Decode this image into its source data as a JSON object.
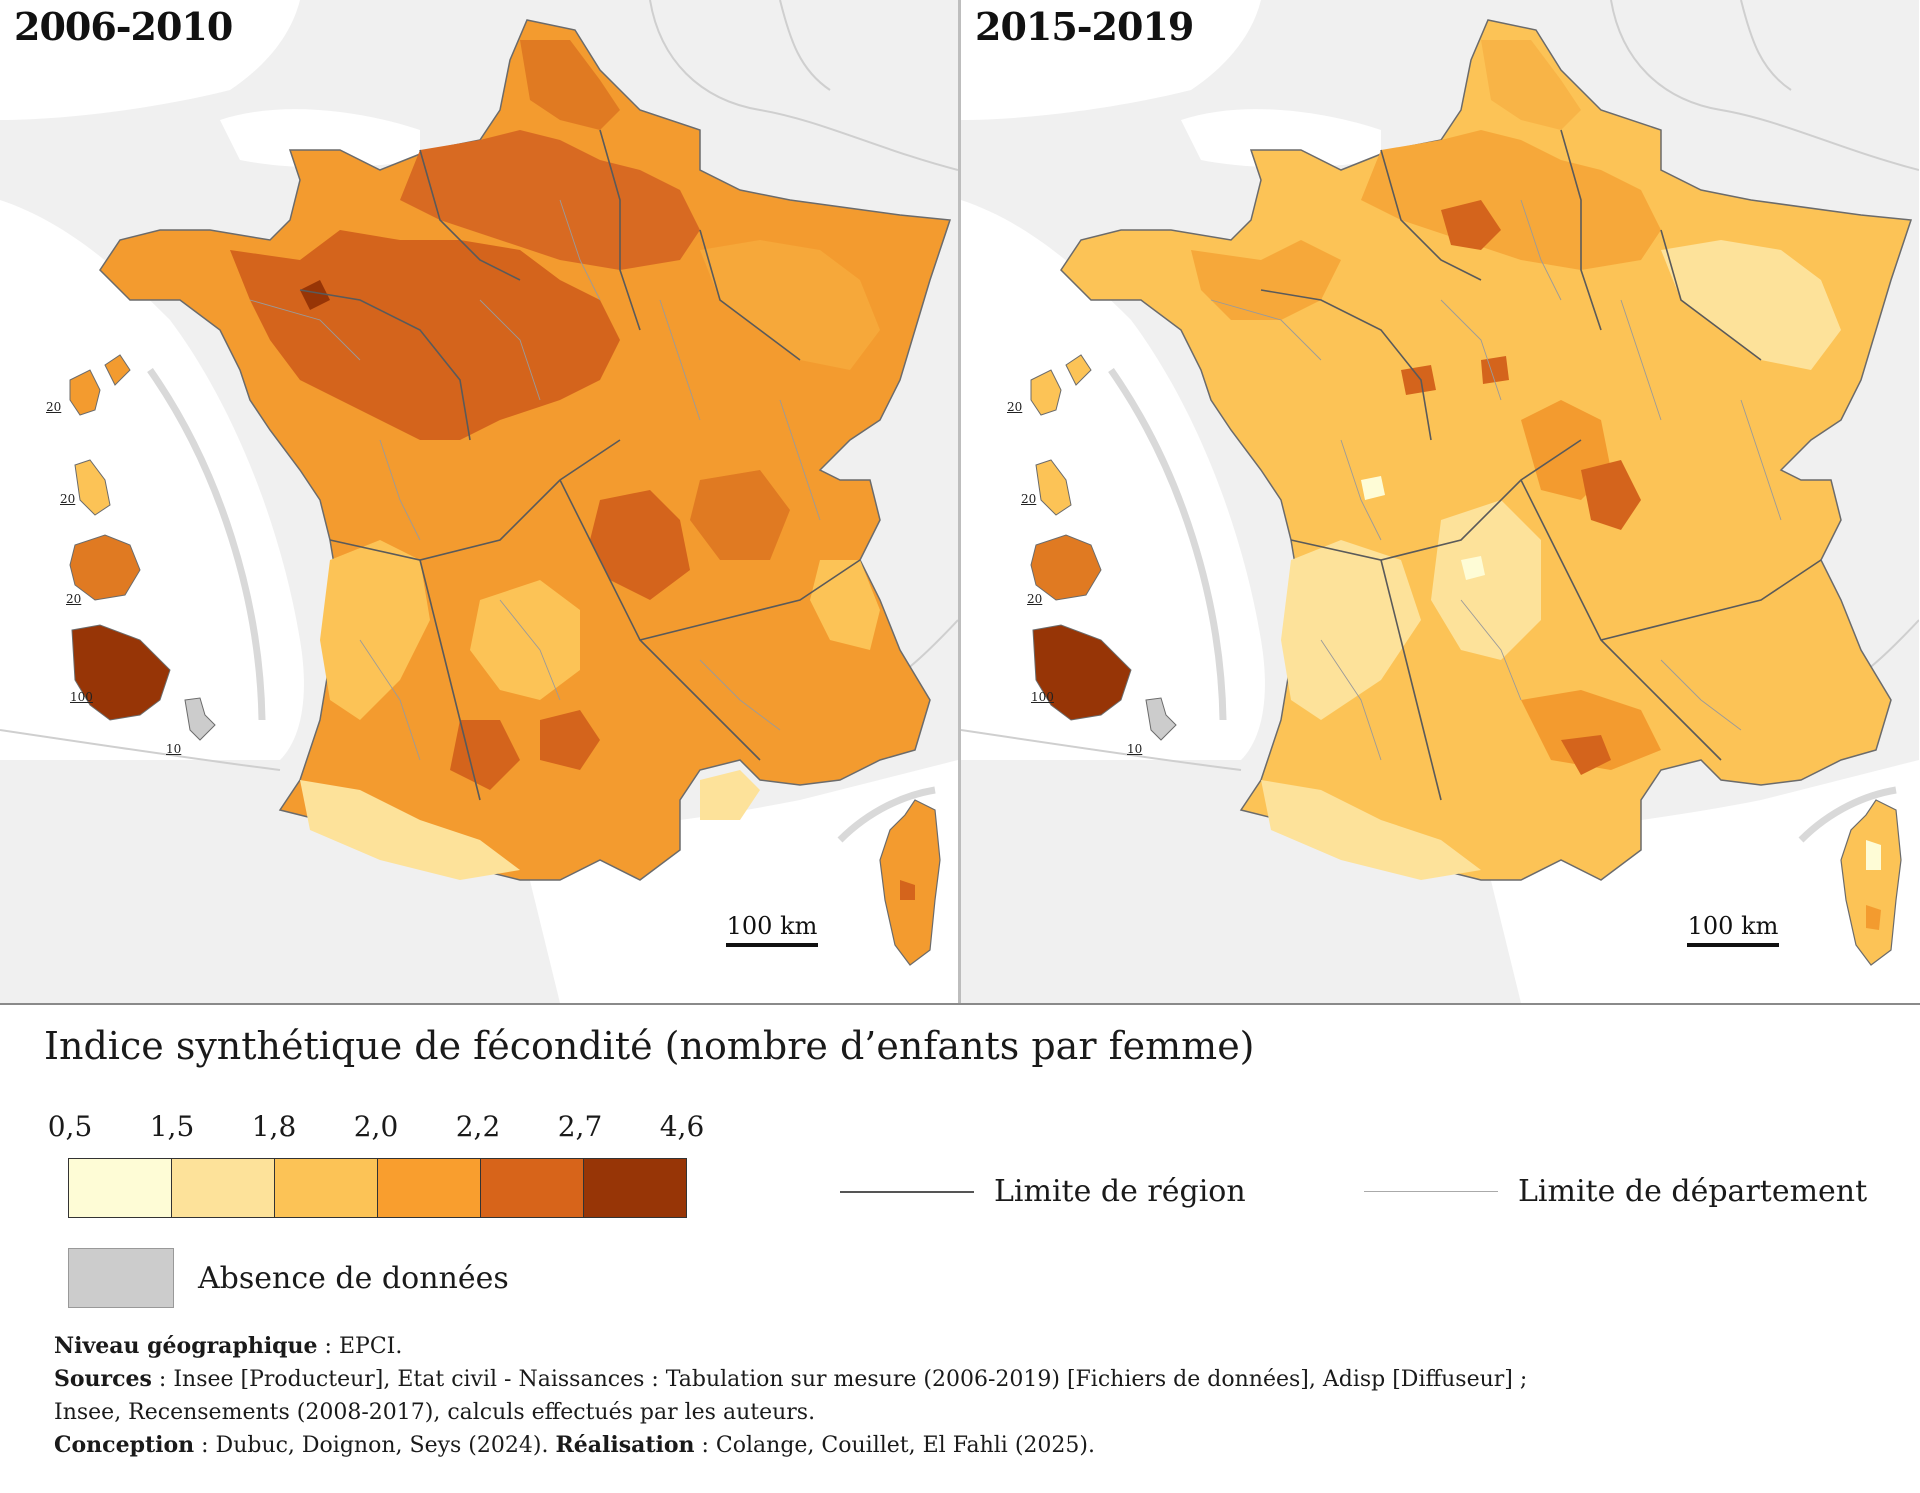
{
  "maps": [
    {
      "period": "2006-2010",
      "scale_label": "100 km"
    },
    {
      "period": "2015-2019",
      "scale_label": "100 km"
    }
  ],
  "inset_labels": [
    "20",
    "20",
    "20",
    "100",
    "10"
  ],
  "legend": {
    "title": "Indice synthétique de fécondité (nombre d’enfants par femme)",
    "breaks": [
      "0,5",
      "1,5",
      "1,8",
      "2,0",
      "2,2",
      "2,7",
      "4,6"
    ],
    "colors": [
      "#fefcd6",
      "#fde29a",
      "#fcc356",
      "#f99e2e",
      "#d7641a",
      "#973506"
    ],
    "no_data_label": "Absence de données",
    "no_data_color": "#cccccc",
    "region_label": "Limite de région",
    "department_label": "Limite de département"
  },
  "notes": {
    "geo_level_label": "Niveau géographique",
    "geo_level": " : EPCI.",
    "sources_label": "Sources",
    "sources_line1": " : Insee [Producteur], Etat civil - Naissances : Tabulation sur mesure (2006-2019) [Fichiers de données], Adisp [Diffuseur] ;",
    "sources_line2": "Insee, Recensements (2008-2017), calculs effectués par les auteurs.",
    "conception_label": "Conception",
    "conception": " : Dubuc, Doignon, Seys (2024). ",
    "realisation_label": "Réalisation",
    "realisation": " : Colange, Couillet, El Fahli (2025)."
  }
}
